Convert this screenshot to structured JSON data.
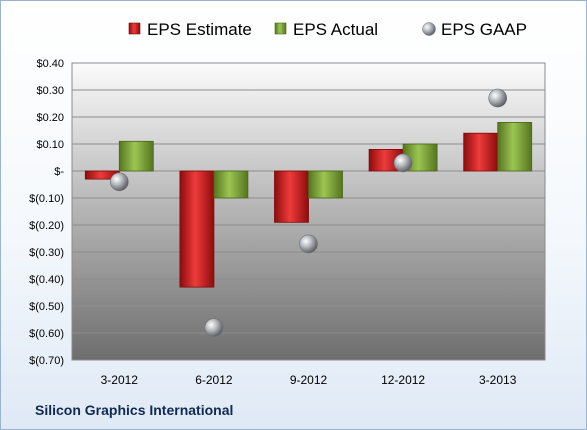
{
  "chart_data": {
    "type": "bar",
    "categories": [
      "3-2012",
      "6-2012",
      "9-2012",
      "12-2012",
      "3-2013"
    ],
    "series": [
      {
        "name": "EPS Estimate",
        "values": [
          -0.03,
          -0.43,
          -0.19,
          0.08,
          0.14
        ],
        "color": "#cc1f1f"
      },
      {
        "name": "EPS Actual",
        "values": [
          0.11,
          -0.1,
          -0.1,
          0.1,
          0.18
        ],
        "color": "#7ea537"
      },
      {
        "name": "EPS GAAP",
        "values": [
          -0.04,
          -0.58,
          -0.27,
          0.03,
          0.27
        ],
        "color": "#9aa0a6",
        "marker": "sphere"
      }
    ],
    "yticks": [
      "$0.40",
      "$0.30",
      "$0.20",
      "$0.10",
      "$-",
      "$(0.10)",
      "$(0.20)",
      "$(0.30)",
      "$(0.40)",
      "$(0.50)",
      "$(0.60)",
      "$(0.70)"
    ],
    "ylim": [
      -0.7,
      0.4
    ],
    "grid": true,
    "legend": "top"
  },
  "company": "Silicon Graphics International"
}
